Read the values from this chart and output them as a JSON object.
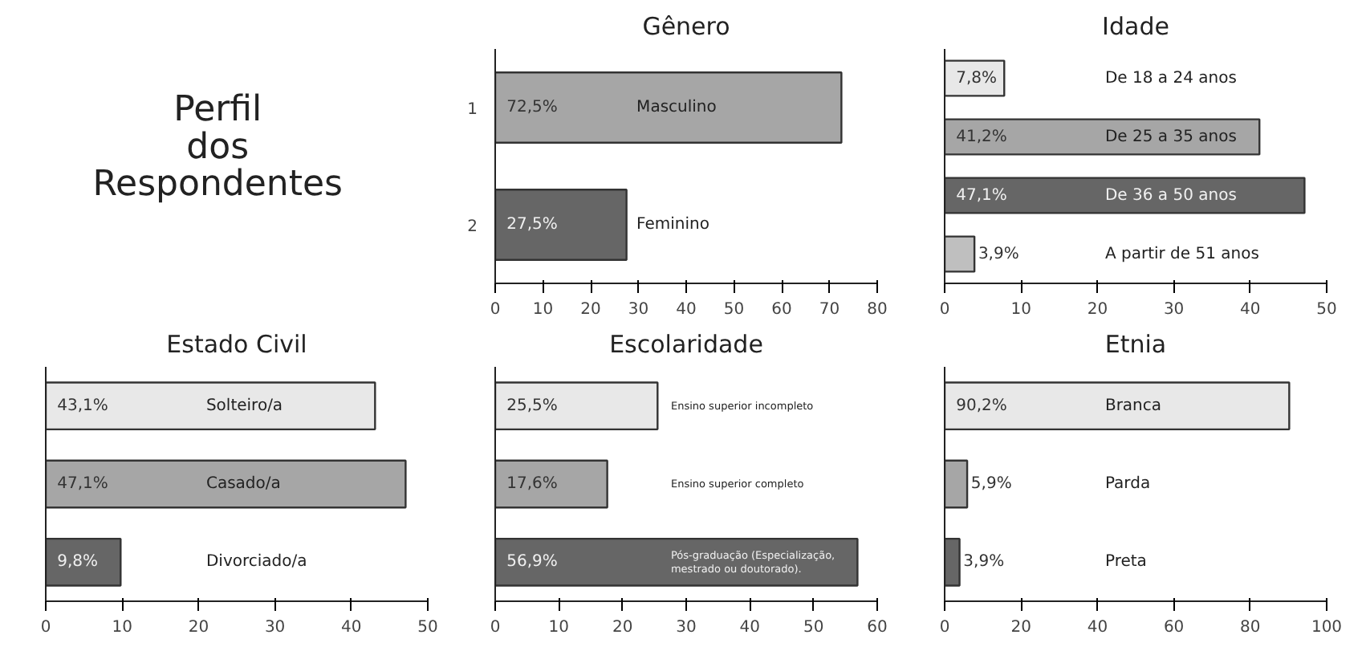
{
  "chart_data": [
    {
      "type": "other",
      "title": "Perfil dos Respondentes"
    },
    {
      "type": "bar",
      "orientation": "horizontal",
      "title": "Gênero",
      "categories": [
        "1",
        "2"
      ],
      "values": [
        72.5,
        27.5
      ],
      "colors": [
        "#a6a6a6",
        "#666666"
      ],
      "value_labels": [
        "72,5%",
        "27,5%"
      ],
      "annotations": [
        "Masculino",
        "Feminino"
      ],
      "xlim": [
        0,
        80
      ],
      "xticks": [
        0,
        10,
        20,
        30,
        40,
        50,
        60,
        70,
        80
      ]
    },
    {
      "type": "bar",
      "orientation": "horizontal",
      "title": "Idade",
      "categories": [
        null,
        null,
        null,
        null
      ],
      "values": [
        7.8,
        41.2,
        47.1,
        3.9
      ],
      "colors": [
        "#e8e8e8",
        "#a6a6a6",
        "#666666",
        "#bfbfbf"
      ],
      "value_labels": [
        "7,8%",
        "41,2%",
        "47,1%",
        "3,9%"
      ],
      "annotations": [
        "De 18 a 24 anos",
        "De 25 a 35 anos",
        "De 36 a 50 anos",
        "A partir de 51 anos"
      ],
      "xlim": [
        0,
        50
      ],
      "xticks": [
        0,
        10,
        20,
        30,
        40,
        50
      ]
    },
    {
      "type": "bar",
      "orientation": "horizontal",
      "title": "Estado Civil",
      "categories": [
        null,
        null,
        null
      ],
      "values": [
        43.1,
        47.1,
        9.8
      ],
      "colors": [
        "#e8e8e8",
        "#a6a6a6",
        "#666666"
      ],
      "value_labels": [
        "43,1%",
        "47,1%",
        "9,8%"
      ],
      "annotations": [
        "Solteiro/a",
        "Casado/a",
        "Divorciado/a"
      ],
      "xlim": [
        0,
        50
      ],
      "xticks": [
        0,
        10,
        20,
        30,
        40,
        50
      ]
    },
    {
      "type": "bar",
      "orientation": "horizontal",
      "title": "Escolaridade",
      "categories": [
        null,
        null,
        null
      ],
      "values": [
        25.5,
        17.6,
        56.9
      ],
      "colors": [
        "#e8e8e8",
        "#a6a6a6",
        "#666666"
      ],
      "value_labels": [
        "25,5%",
        "17,6%",
        "56,9%"
      ],
      "annotations": [
        "Ensino superior incompleto",
        "Ensino superior completo",
        "Pós-graduação (Especialização, mestrado ou doutorado)."
      ],
      "xlim": [
        0,
        60
      ],
      "xticks": [
        0,
        10,
        20,
        30,
        40,
        50,
        60
      ]
    },
    {
      "type": "bar",
      "orientation": "horizontal",
      "title": "Etnia",
      "categories": [
        null,
        null,
        null
      ],
      "values": [
        90.2,
        5.9,
        3.9
      ],
      "colors": [
        "#e8e8e8",
        "#a6a6a6",
        "#666666"
      ],
      "value_labels": [
        "90,2%",
        "5,9%",
        "3,9%"
      ],
      "annotations": [
        "Branca",
        "Parda",
        "Preta"
      ],
      "xlim": [
        0,
        100
      ],
      "xticks": [
        0,
        20,
        40,
        60,
        80,
        100
      ]
    }
  ]
}
